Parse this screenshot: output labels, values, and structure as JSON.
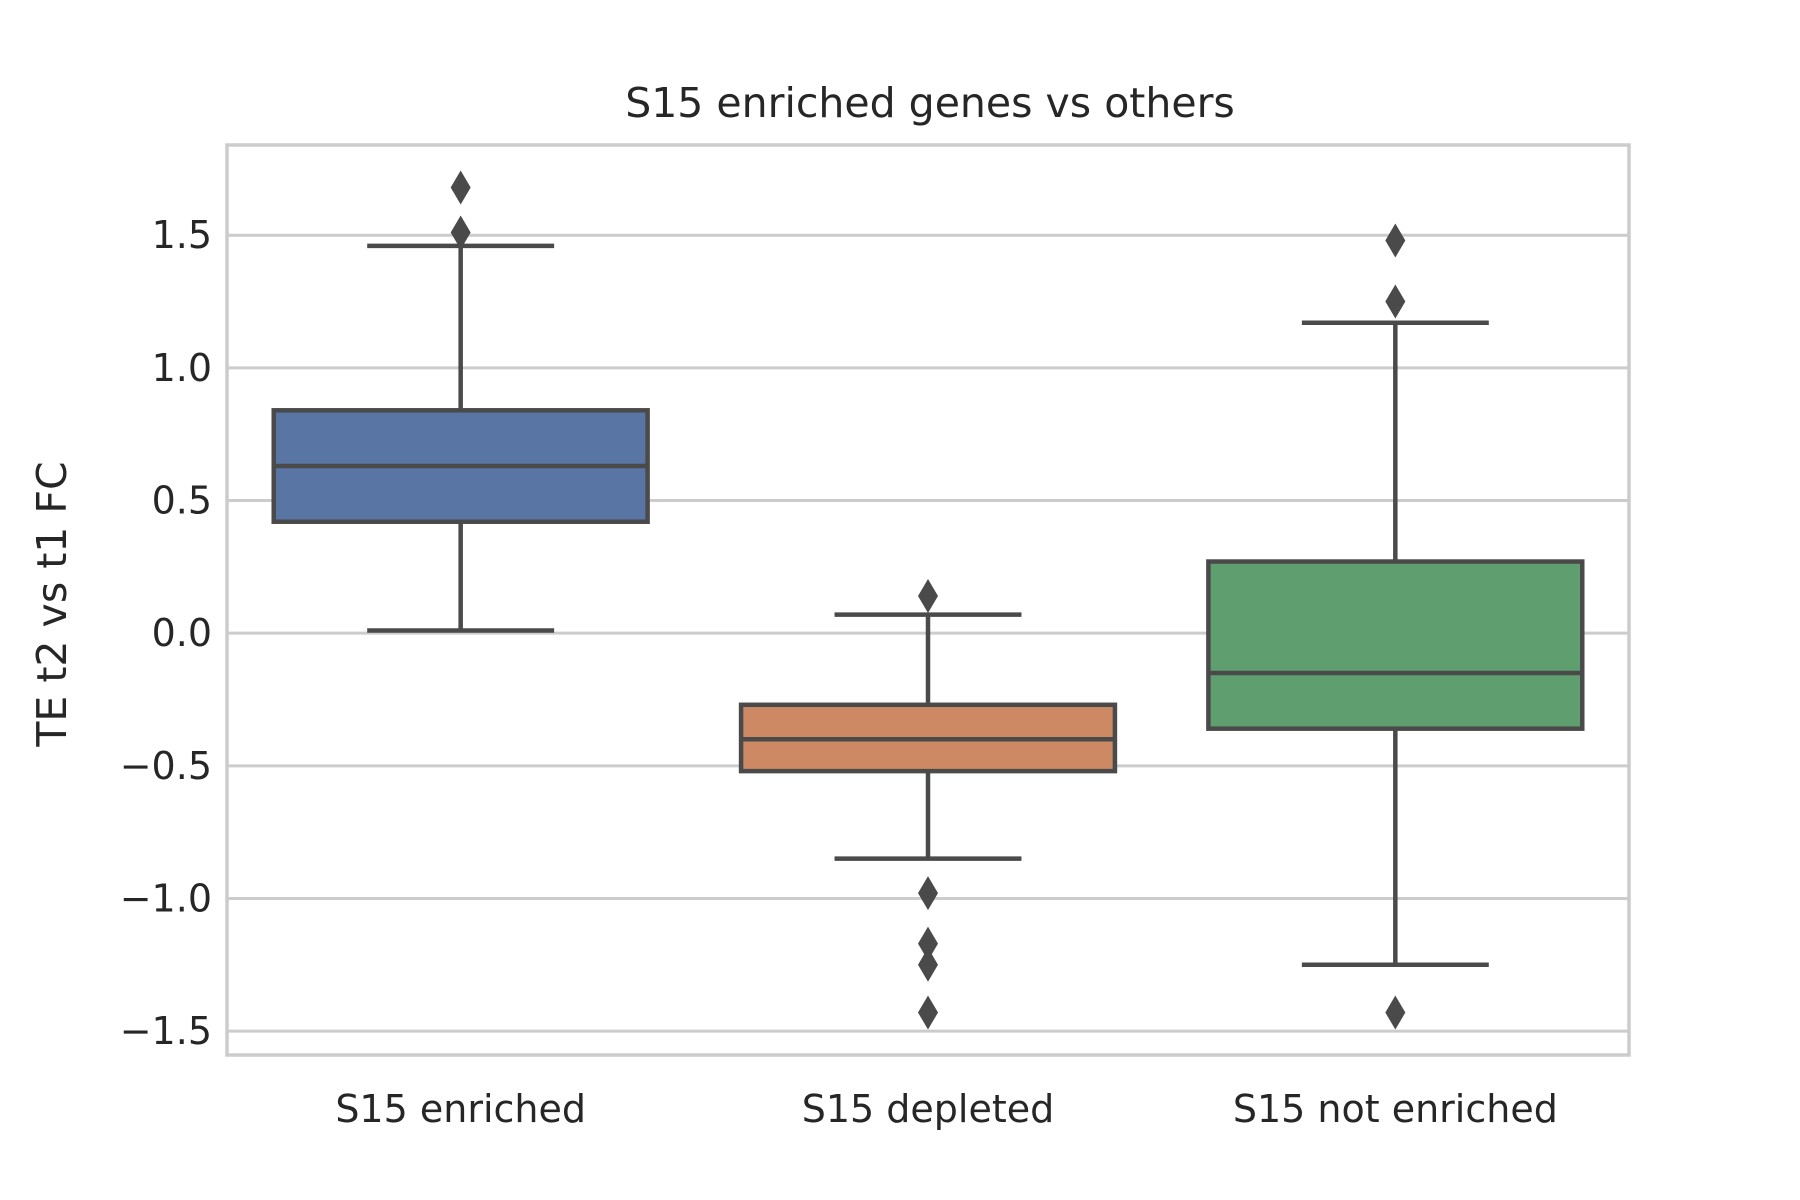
{
  "chart_data": {
    "type": "box",
    "title": "S15 enriched genes vs others",
    "xlabel": "",
    "ylabel": "TE t2 vs t1 FC",
    "ylim": [
      -1.59,
      1.84
    ],
    "yticks": [
      1.5,
      1.0,
      0.5,
      0.0,
      -0.5,
      -1.0,
      -1.5
    ],
    "ytick_labels": [
      "1.5",
      "1.0",
      "0.5",
      "0.0",
      "−0.5",
      "−1.0",
      "−1.5"
    ],
    "grid": "horizontal",
    "categories": [
      "S15 enriched",
      "S15 depleted",
      "S15 not enriched"
    ],
    "boxes": [
      {
        "category": "S15 enriched",
        "color": "#5975a4",
        "whisker_low": 0.01,
        "q1": 0.42,
        "median": 0.63,
        "q3": 0.84,
        "whisker_high": 1.46,
        "outliers": [
          1.51,
          1.68
        ]
      },
      {
        "category": "S15 depleted",
        "color": "#cc8963",
        "whisker_low": -0.85,
        "q1": -0.52,
        "median": -0.4,
        "q3": -0.27,
        "whisker_high": 0.07,
        "outliers": [
          0.14,
          -0.98,
          -1.17,
          -1.25,
          -1.43
        ]
      },
      {
        "category": "S15 not enriched",
        "color": "#5f9e6e",
        "whisker_low": -1.25,
        "q1": -0.36,
        "median": -0.15,
        "q3": 0.27,
        "whisker_high": 1.17,
        "outliers": [
          1.25,
          1.48,
          -1.43
        ]
      }
    ],
    "line_color": "#4a4a4a",
    "grid_color": "#cccccc",
    "text_color": "#262626"
  }
}
